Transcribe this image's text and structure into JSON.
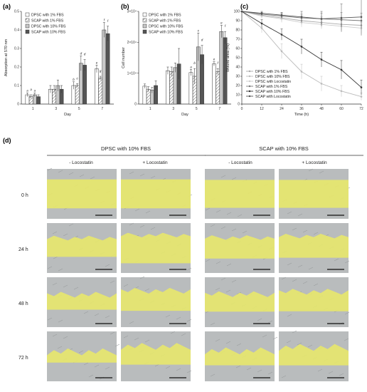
{
  "panels": {
    "a": "(a)",
    "b": "(b)",
    "c": "(c)",
    "d": "(d)"
  },
  "chart_data": [
    {
      "type": "bar",
      "categories": [
        "1",
        "3",
        "5",
        "7"
      ],
      "xlabel": "Day",
      "ylabel": "Absorption at 570 nm",
      "ylim": [
        0,
        0.5
      ],
      "yticks": [
        "0",
        "0.1",
        "0.2",
        "0.3",
        "0.4",
        "0.5"
      ],
      "legend_position": "top-left",
      "series": [
        {
          "name": "DPSC with 1% FBS",
          "values": [
            0.05,
            0.08,
            0.1,
            0.19
          ],
          "errors": [
            0.01,
            0.02,
            0.02,
            0.02
          ],
          "labels": [
            "a",
            "",
            "b",
            "e"
          ]
        },
        {
          "name": "SCAP with 1% FBS",
          "values": [
            0.04,
            0.08,
            0.1,
            0.14
          ],
          "errors": [
            0.01,
            0.02,
            0.01,
            0.01
          ],
          "labels": [
            "a",
            "",
            "c",
            "g"
          ]
        },
        {
          "name": "DPSC with 10% FBS",
          "values": [
            0.05,
            0.1,
            0.22,
            0.4
          ],
          "errors": [
            0.01,
            0.03,
            0.04,
            0.04
          ],
          "labels": [
            "a",
            "",
            "d",
            "f"
          ]
        },
        {
          "name": "SCAP with 10% FBS",
          "values": [
            0.04,
            0.08,
            0.21,
            0.38
          ],
          "errors": [
            0.01,
            0.02,
            0.03,
            0.04
          ],
          "labels": [
            "",
            "",
            "d",
            "f"
          ]
        }
      ]
    },
    {
      "type": "bar",
      "categories": [
        "1",
        "3",
        "5",
        "7"
      ],
      "xlabel": "Day",
      "ylabel": "Cell number",
      "ylim": [
        0,
        30000
      ],
      "yticks": [
        "0",
        "1×10⁴",
        "2×10⁴",
        "3×10⁴"
      ],
      "legend_position": "top-left",
      "series": [
        {
          "name": "DPSC with 1% FBS",
          "values": [
            5800,
            10800,
            10200,
            13000
          ],
          "errors": [
            700,
            1200,
            1000,
            700
          ],
          "labels": [
            "",
            "",
            "a",
            "e"
          ]
        },
        {
          "name": "SCAP with 1% FBS",
          "values": [
            4800,
            10500,
            9000,
            10500
          ],
          "errors": [
            800,
            1500,
            2500,
            1000
          ],
          "labels": [
            "",
            "",
            "b",
            "f"
          ]
        },
        {
          "name": "DPSC with 10% FBS",
          "values": [
            4500,
            11800,
            18500,
            23500
          ],
          "errors": [
            900,
            1500,
            4500,
            2000
          ],
          "labels": [
            "",
            "",
            "c",
            "e"
          ]
        },
        {
          "name": "SCAP with 10% FBS",
          "values": [
            6000,
            13000,
            16000,
            21500
          ],
          "errors": [
            1500,
            5000,
            3000,
            2000
          ],
          "labels": [
            "",
            "",
            "d",
            "f"
          ]
        }
      ]
    },
    {
      "type": "line",
      "x": [
        0,
        12,
        24,
        36,
        48,
        60,
        72
      ],
      "xlabel": "Time (h)",
      "ylabel": "Wound area (%)",
      "xlim": [
        0,
        72
      ],
      "ylim": [
        0,
        100
      ],
      "xticks": [
        "0",
        "12",
        "24",
        "36",
        "48",
        "60",
        "72"
      ],
      "yticks": [
        "0",
        "10",
        "20",
        "30",
        "40",
        "50",
        "60",
        "70",
        "80",
        "90",
        "100"
      ],
      "legend_position": "bottom-left",
      "series": [
        {
          "name": "DPSC with 1% FBS",
          "values": [
            100,
            96,
            93,
            90,
            88,
            86,
            85
          ],
          "errors": [
            0,
            3,
            4,
            5,
            6,
            6,
            5
          ],
          "color": "#aaaaaa"
        },
        {
          "name": "DPSC with 10% FBS",
          "values": [
            100,
            82,
            57,
            35,
            22,
            14,
            8
          ],
          "errors": [
            0,
            5,
            8,
            8,
            8,
            6,
            4
          ],
          "color": "#bbbbbb"
        },
        {
          "name": "DPSC with Locostatin",
          "values": [
            100,
            95,
            92,
            88,
            86,
            84,
            82
          ],
          "errors": [
            0,
            3,
            4,
            5,
            5,
            6,
            6
          ],
          "color": "#cccccc"
        },
        {
          "name": "SCAP with 1% FBS",
          "values": [
            100,
            97,
            95,
            93,
            92,
            91,
            90
          ],
          "errors": [
            0,
            2,
            3,
            4,
            6,
            8,
            8
          ],
          "color": "#777777"
        },
        {
          "name": "SCAP with 10% FBS",
          "values": [
            100,
            87,
            75,
            62,
            48,
            37,
            18
          ],
          "errors": [
            0,
            4,
            6,
            8,
            8,
            10,
            8
          ],
          "color": "#333333"
        },
        {
          "name": "SCAP with Locostatin",
          "values": [
            100,
            98,
            96,
            94,
            92,
            93,
            94
          ],
          "errors": [
            0,
            2,
            3,
            6,
            8,
            15,
            20
          ],
          "color": "#555555"
        }
      ]
    }
  ],
  "micrographs": {
    "groups": [
      "DPSC with 10% FBS",
      "SCAP with 10% FBS"
    ],
    "conditions": [
      "- Locostatin",
      "+ Locostatin",
      "- Locostatin",
      "+ Locostatin"
    ],
    "timepoints": [
      "0 h",
      "24 h",
      "48 h",
      "72 h"
    ],
    "gap_fraction": [
      [
        0.58,
        0.58,
        0.56,
        0.56
      ],
      [
        0.4,
        0.52,
        0.42,
        0.48
      ],
      [
        0.3,
        0.46,
        0.32,
        0.42
      ],
      [
        0.18,
        0.4,
        0.22,
        0.36
      ]
    ],
    "overlay_color": "#e8e86a",
    "background_color": "#b9bcbd"
  }
}
